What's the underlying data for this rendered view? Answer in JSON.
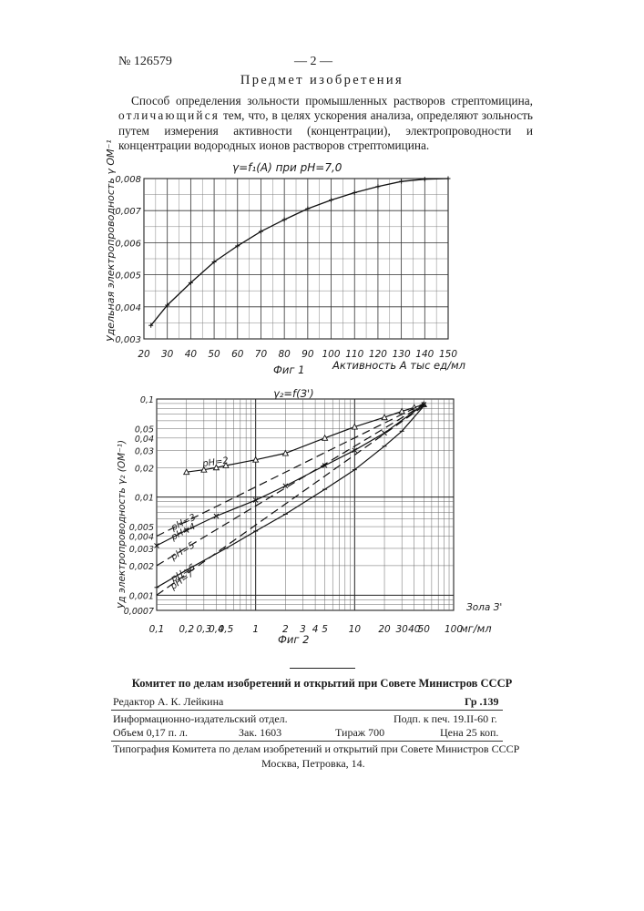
{
  "header": {
    "patent_number": "№ 126579",
    "page_number": "— 2 —",
    "section_title": "Предмет изобретения"
  },
  "claim": {
    "lead": "Способ определения зольности промышленных растворов стрептомицина,",
    "spaced": "отличающийся",
    "rest": "тем, что, в целях ускорения анализа, определяют зольность путем измерения активности (концентрации), электропроводности и концентрации водородных ионов растворов стрептомицина."
  },
  "chart_data": [
    {
      "type": "line",
      "title": "γ=f₁(A) при pH=7,0",
      "xlabel": "Активность А тыс ед/мл",
      "ylabel": "Удельная электропроводность γ ОМ⁻¹",
      "caption": "Фиг 1",
      "xlim": [
        20,
        150
      ],
      "ylim": [
        0.003,
        0.008
      ],
      "x_ticks": [
        "20",
        "30",
        "40",
        "50",
        "60",
        "70",
        "80",
        "90",
        "100",
        "110",
        "120",
        "130",
        "140",
        "150"
      ],
      "y_ticks": [
        "0,003",
        "0,004",
        "0,005",
        "0,006",
        "0,007",
        "0,008"
      ],
      "x": [
        23,
        30,
        40,
        50,
        60,
        70,
        80,
        90,
        100,
        110,
        120,
        130,
        140,
        150
      ],
      "values": [
        0.00342,
        0.00405,
        0.00475,
        0.0054,
        0.0059,
        0.00635,
        0.00672,
        0.00706,
        0.00733,
        0.00756,
        0.00775,
        0.00791,
        0.00798,
        0.008
      ]
    },
    {
      "type": "line",
      "title": "γ₂=f(З')",
      "xlabel": "Зола З' мг/мл",
      "x_unit": "мг/мл",
      "x_axis_name": "Зола З'",
      "ylabel": "Уд электропроводность γ₂ (ОМ⁻¹)",
      "caption": "Фиг 2",
      "scale": "log-log",
      "xlim": [
        0.1,
        100
      ],
      "ylim": [
        0.0007,
        0.1
      ],
      "x_ticks": [
        "0,1",
        "0,2",
        "0,3",
        "0,4",
        "0,5",
        "1",
        "2",
        "3",
        "4",
        "5",
        "10",
        "20",
        "30",
        "40",
        "50",
        "100"
      ],
      "y_ticks": [
        "0,0007",
        "0,001",
        "0,002",
        "0,003",
        "0,004",
        "0,005",
        "0,01",
        "0,02",
        "0,03",
        "0,04",
        "0,05",
        "0,1"
      ],
      "series": [
        {
          "name": "pH=2",
          "x": [
            0.2,
            0.3,
            0.4,
            0.5,
            1,
            2,
            5,
            10,
            20,
            30,
            40,
            50
          ],
          "values": [
            0.018,
            0.019,
            0.02,
            0.021,
            0.024,
            0.028,
            0.04,
            0.052,
            0.065,
            0.075,
            0.082,
            0.088
          ]
        },
        {
          "name": "pH=3",
          "x": [
            0.1,
            50
          ],
          "values": [
            0.004,
            0.09
          ]
        },
        {
          "name": "pH=4",
          "x": [
            0.1,
            0.2,
            0.4,
            1,
            2,
            5,
            10,
            20,
            50
          ],
          "values": [
            0.0032,
            0.0046,
            0.0064,
            0.0093,
            0.013,
            0.021,
            0.03,
            0.045,
            0.088
          ]
        },
        {
          "name": "pH=5",
          "x": [
            0.1,
            50
          ],
          "values": [
            0.002,
            0.088
          ]
        },
        {
          "name": "pH=6",
          "x": [
            0.1,
            0.2,
            0.5,
            1,
            2,
            5,
            10,
            20,
            30,
            50
          ],
          "values": [
            0.0012,
            0.0018,
            0.003,
            0.0045,
            0.0067,
            0.012,
            0.019,
            0.033,
            0.047,
            0.085
          ]
        },
        {
          "name": "pH=7",
          "x": [
            0.1,
            50
          ],
          "values": [
            0.001,
            0.085
          ]
        }
      ]
    }
  ],
  "footer": {
    "committee": "Комитет по делам изобретений и открытий при Совете Министров СССР",
    "editor": "Редактор А. К. Лейкина",
    "group": "Гр .139",
    "dept": "Информационно-издательский отдел.",
    "signed": "Подп. к печ. 19.II-60 г.",
    "volume": "Объем 0,17 п. л.",
    "order": "Зак. 1603",
    "print_run": "Тираж 700",
    "price": "Цена 25 коп.",
    "printer": "Типография Комитета по делам изобретений и открытий при Совете Министров СССР",
    "address": "Москва, Петровка, 14."
  }
}
